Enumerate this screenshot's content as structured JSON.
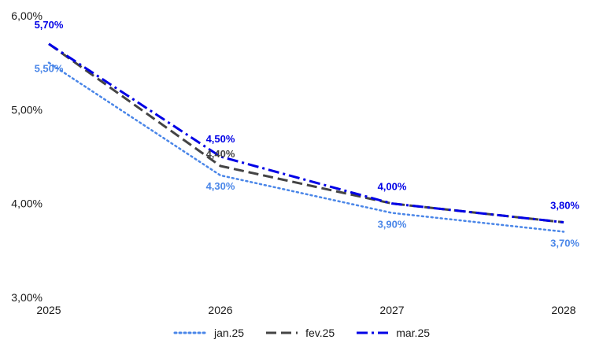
{
  "chart_data": {
    "type": "line",
    "x": [
      "2025",
      "2026",
      "2027",
      "2028"
    ],
    "ylim": [
      3.0,
      6.0
    ],
    "yticks": [
      "3,00%",
      "4,00%",
      "5,00%",
      "6,00%"
    ],
    "ytick_values": [
      3.0,
      4.0,
      5.0,
      6.0
    ],
    "grid": false,
    "legend_position": "bottom",
    "series": [
      {
        "name": "jan.25",
        "values": [
          5.5,
          4.3,
          3.9,
          3.7
        ],
        "labels": [
          "5,50%",
          "4,30%",
          "3,90%",
          "3,70%"
        ],
        "color": "#4a86e8",
        "style": "dotted"
      },
      {
        "name": "fev.25",
        "values": [
          5.7,
          4.4,
          4.0,
          3.8
        ],
        "labels": [
          "",
          "4,40%",
          "",
          ""
        ],
        "color": "#444444",
        "style": "dashed"
      },
      {
        "name": "mar.25",
        "values": [
          5.7,
          4.5,
          4.0,
          3.8
        ],
        "labels": [
          "5,70%",
          "4,50%",
          "4,00%",
          "3,80%"
        ],
        "color": "#0000e6",
        "style": "dash-dot"
      }
    ]
  }
}
